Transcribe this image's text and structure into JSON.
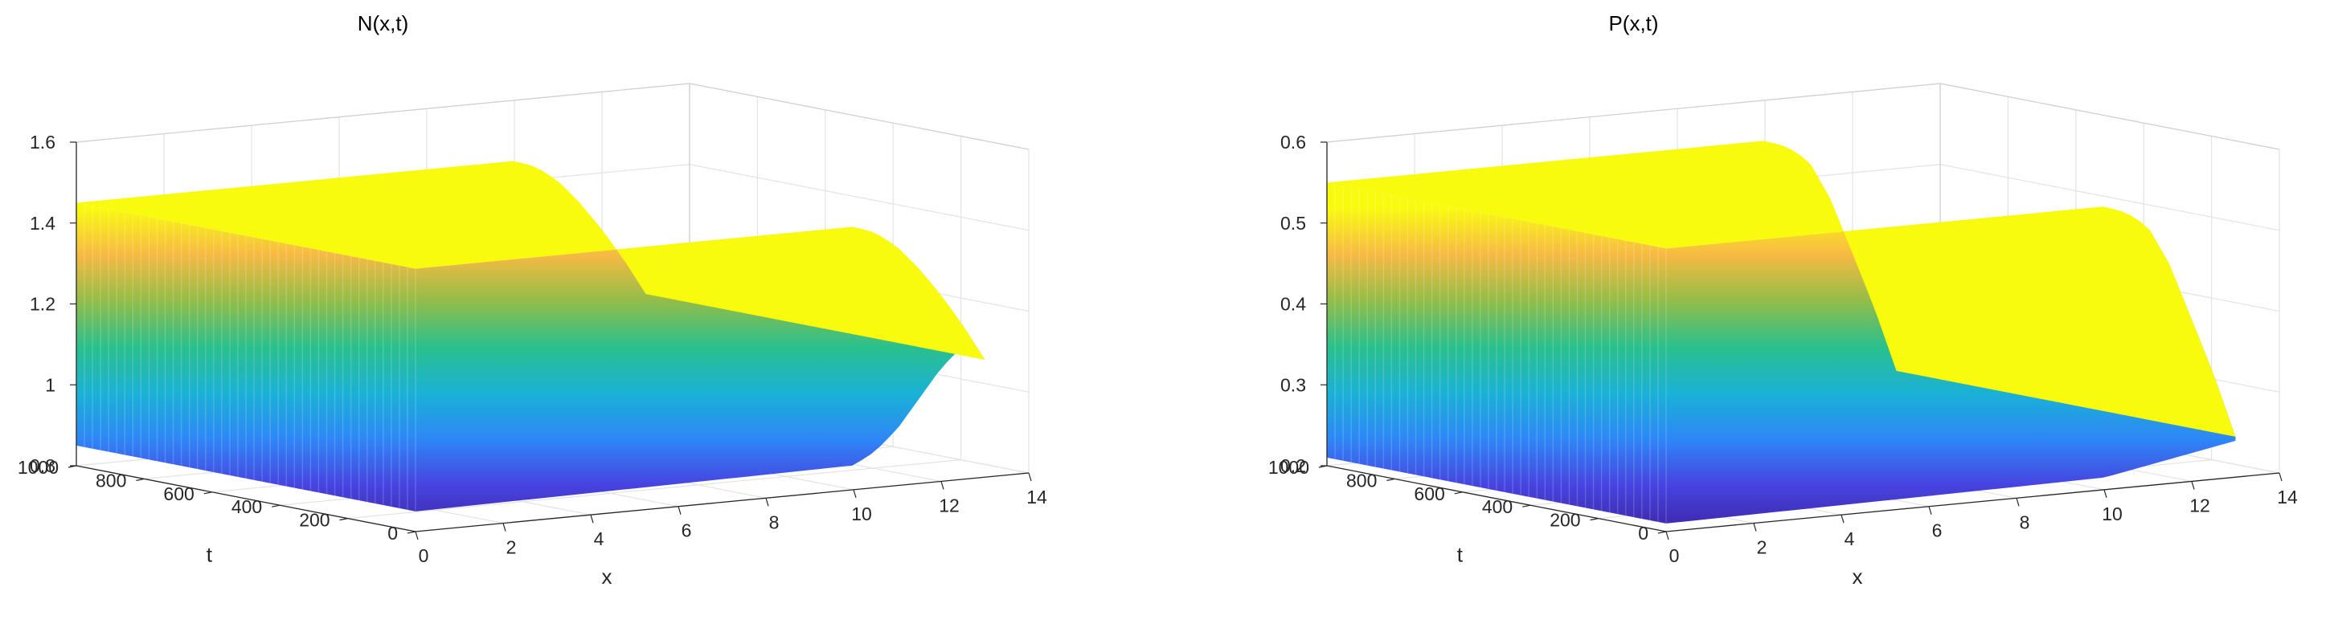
{
  "colormap": [
    "#3e26a8",
    "#4743e0",
    "#2e87f7",
    "#1ab2d5",
    "#2ac08c",
    "#93bd48",
    "#f8ba43",
    "#f9fb0e"
  ],
  "chart_data": [
    {
      "type": "surface",
      "title": "N(x,t)",
      "xlabel": "x",
      "ylabel": "t",
      "zlabel": "",
      "xlim": [
        0,
        14
      ],
      "ylim": [
        0,
        1000
      ],
      "zlim": [
        0.8,
        1.6
      ],
      "xticks": [
        "0",
        "2",
        "4",
        "6",
        "8",
        "10",
        "12",
        "14"
      ],
      "yticks": [
        "0",
        "200",
        "400",
        "600",
        "800",
        "1000"
      ],
      "zticks": [
        "0.8",
        "1",
        "1.2",
        "1.4",
        "1.6"
      ],
      "grid": true,
      "x_range": [
        0,
        13
      ],
      "t_range": [
        0,
        1000
      ],
      "front_profile_x": [
        0,
        10,
        10.5,
        11,
        11.5,
        12,
        12.5,
        13
      ],
      "front_profile_value": [
        0.85,
        0.86,
        0.89,
        0.94,
        1.01,
        1.08,
        1.13,
        1.09
      ],
      "back_profile_value": [
        1.45,
        1.45,
        1.43,
        1.39,
        1.33,
        1.26,
        1.18,
        1.09
      ]
    },
    {
      "type": "surface",
      "title": "P(x,t)",
      "xlabel": "x",
      "ylabel": "t",
      "zlabel": "",
      "xlim": [
        0,
        14
      ],
      "ylim": [
        0,
        1000
      ],
      "zlim": [
        0.2,
        0.6
      ],
      "xticks": [
        "0",
        "2",
        "4",
        "6",
        "8",
        "10",
        "12",
        "14"
      ],
      "yticks": [
        "0",
        "200",
        "400",
        "600",
        "800",
        "1000"
      ],
      "zticks": [
        "0.2",
        "0.3",
        "0.4",
        "0.5",
        "0.6"
      ],
      "grid": true,
      "x_range": [
        0,
        13
      ],
      "t_range": [
        0,
        1000
      ],
      "front_profile_x": [
        0,
        10,
        10.5,
        11,
        11.5,
        12,
        12.5,
        13
      ],
      "front_profile_value": [
        0.21,
        0.215,
        0.22,
        0.225,
        0.23,
        0.235,
        0.24,
        0.245
      ],
      "back_profile_value": [
        0.55,
        0.55,
        0.54,
        0.52,
        0.47,
        0.4,
        0.33,
        0.25
      ]
    }
  ]
}
